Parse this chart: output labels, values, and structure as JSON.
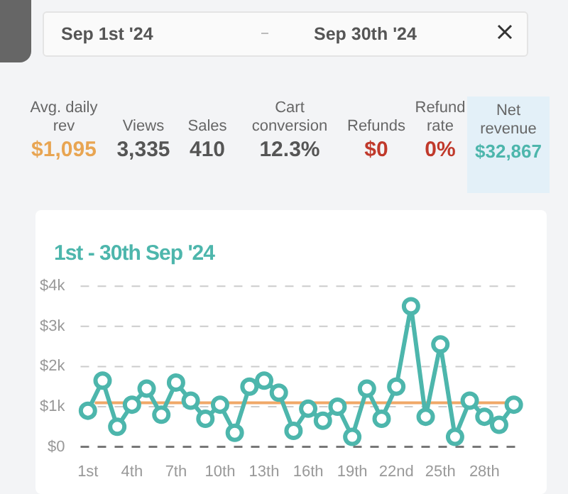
{
  "chart_data": {
    "type": "line",
    "title": "1st - 30th Sep '24",
    "categories": [
      "1st",
      null,
      null,
      "4th",
      null,
      null,
      "7th",
      null,
      null,
      "10th",
      null,
      null,
      "13th",
      null,
      null,
      "16th",
      null,
      null,
      "19th",
      null,
      null,
      "22nd",
      null,
      null,
      "25th",
      null,
      null,
      "28th",
      null,
      null
    ],
    "values": [
      0.9,
      1.65,
      0.5,
      1.05,
      1.45,
      0.8,
      1.6,
      1.15,
      0.7,
      1.05,
      0.35,
      1.5,
      1.65,
      1.35,
      0.4,
      0.95,
      0.65,
      1.0,
      0.25,
      1.45,
      0.7,
      1.5,
      3.5,
      0.75,
      2.55,
      0.25,
      1.15,
      0.75,
      0.55,
      1.05
    ],
    "color": "#4db6ac",
    "marker": "circle",
    "ylim": [
      0,
      4
    ],
    "yticks": [
      {
        "value": 0,
        "label": "$0"
      },
      {
        "value": 1,
        "label": "$1k"
      },
      {
        "value": 2,
        "label": "$2k"
      },
      {
        "value": 3,
        "label": "$3k"
      },
      {
        "value": 4,
        "label": "$4k"
      }
    ],
    "grid": "y",
    "ref_lines": [
      {
        "axis": "y",
        "value": 1.095,
        "label": null,
        "color": "#f0a868"
      }
    ],
    "annotations": [
      "Sep 1st '24",
      "Sep 30th '24",
      "Avg. daily rev",
      "$1,095",
      "Views",
      "3,335",
      "Sales",
      "410",
      "Cart conversion",
      "12.3%",
      "Refunds",
      "$0",
      "Refund rate",
      "0%",
      "Net revenue",
      "$32,867"
    ]
  }
}
